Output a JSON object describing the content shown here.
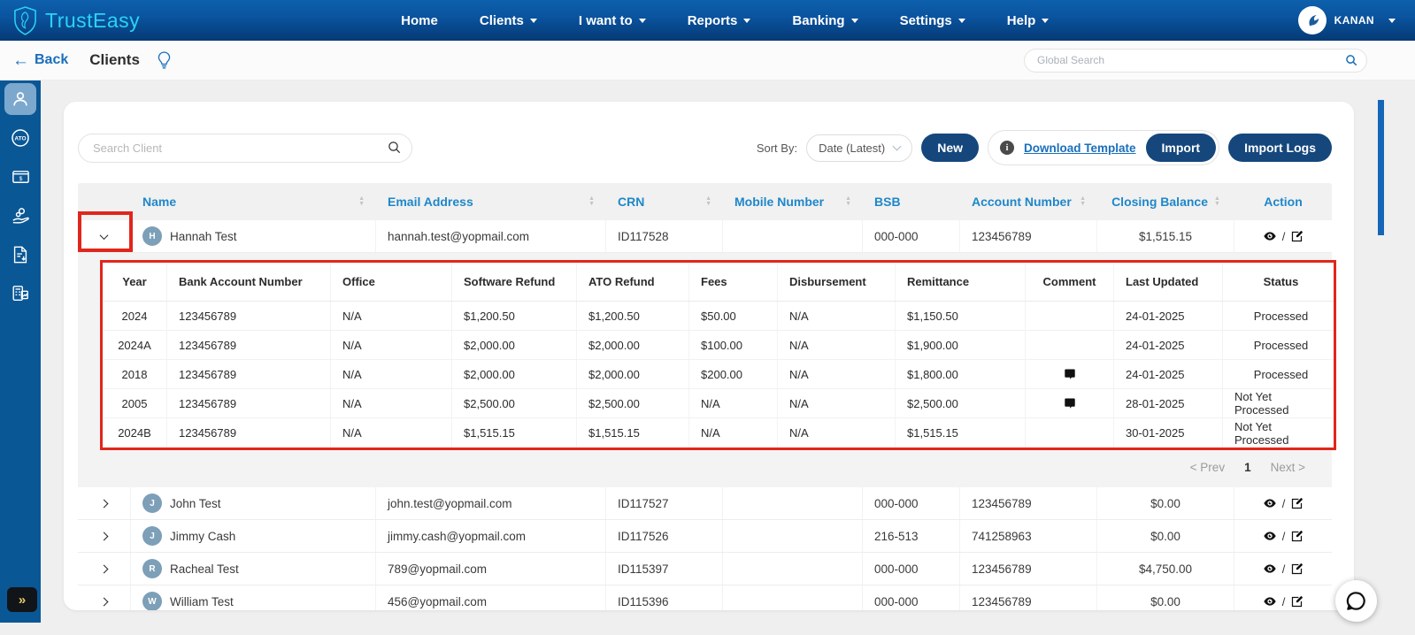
{
  "navbar": {
    "brand": "TrustEasy",
    "items": [
      {
        "id": "home",
        "label": "Home",
        "caret": false
      },
      {
        "id": "clients",
        "label": "Clients",
        "caret": true
      },
      {
        "id": "i-want-to",
        "label": "I want to",
        "caret": true
      },
      {
        "id": "reports",
        "label": "Reports",
        "caret": true
      },
      {
        "id": "banking",
        "label": "Banking",
        "caret": true
      },
      {
        "id": "settings",
        "label": "Settings",
        "caret": true
      },
      {
        "id": "help",
        "label": "Help",
        "caret": true
      }
    ],
    "user_name": "KANAN"
  },
  "subheader": {
    "back_label": "Back",
    "title": "Clients",
    "global_search_placeholder": "Global Search",
    "icons": [
      "back-arrow-icon",
      "lightbulb-icon",
      "search-icon"
    ]
  },
  "sidebar": {
    "items": [
      {
        "id": "clients",
        "icon": "person-icon",
        "active": true
      },
      {
        "id": "ato",
        "icon": "ato-icon",
        "active": false
      },
      {
        "id": "banking",
        "icon": "monitor-money-icon",
        "active": false
      },
      {
        "id": "disbursement",
        "icon": "hand-coins-icon",
        "active": false
      },
      {
        "id": "documents",
        "icon": "document-download-icon",
        "active": false
      },
      {
        "id": "reports",
        "icon": "calculator-report-icon",
        "active": false
      }
    ],
    "expand_label": "»"
  },
  "toolbar": {
    "search_placeholder": "Search Client",
    "sort_by_label": "Sort By:",
    "sort_value": "Date (Latest)",
    "new_label": "New",
    "info_icon": "info-icon",
    "download_template_label": "Download Template",
    "import_label": "Import",
    "import_logs_label": "Import Logs"
  },
  "clients_table": {
    "columns": [
      {
        "label": "",
        "sortable": false
      },
      {
        "label": "Name",
        "sortable": true
      },
      {
        "label": "Email Address",
        "sortable": true
      },
      {
        "label": "CRN",
        "sortable": true
      },
      {
        "label": "Mobile Number",
        "sortable": true
      },
      {
        "label": "BSB",
        "sortable": false
      },
      {
        "label": "Account Number",
        "sortable": true
      },
      {
        "label": "Closing Balance",
        "sortable": true
      },
      {
        "label": "Action",
        "sortable": false
      }
    ],
    "rows": [
      {
        "initial": "H",
        "name": "Hannah Test",
        "email": "hannah.test@yopmail.com",
        "crn": "ID117528",
        "mobile": "",
        "bsb": "000-000",
        "account_number": "123456789",
        "closing_balance": "$1,515.15",
        "expanded": true
      },
      {
        "initial": "J",
        "name": "John Test",
        "email": "john.test@yopmail.com",
        "crn": "ID117527",
        "mobile": "",
        "bsb": "000-000",
        "account_number": "123456789",
        "closing_balance": "$0.00",
        "expanded": false
      },
      {
        "initial": "J",
        "name": "Jimmy Cash",
        "email": "jimmy.cash@yopmail.com",
        "crn": "ID117526",
        "mobile": "",
        "bsb": "216-513",
        "account_number": "741258963",
        "closing_balance": "$0.00",
        "expanded": false
      },
      {
        "initial": "R",
        "name": "Racheal Test",
        "email": "789@yopmail.com",
        "crn": "ID115397",
        "mobile": "",
        "bsb": "000-000",
        "account_number": "123456789",
        "closing_balance": "$4,750.00",
        "expanded": false
      },
      {
        "initial": "W",
        "name": "William Test",
        "email": "456@yopmail.com",
        "crn": "ID115396",
        "mobile": "",
        "bsb": "000-000",
        "account_number": "123456789",
        "closing_balance": "$0.00",
        "expanded": false
      }
    ],
    "action_icons": {
      "view": "eye-icon",
      "separator": "/",
      "edit": "edit-icon"
    }
  },
  "detail_table": {
    "columns": [
      "Year",
      "Bank Account Number",
      "Office",
      "Software Refund",
      "ATO Refund",
      "Fees",
      "Disbursement",
      "Remittance",
      "Comment",
      "Last Updated",
      "Status"
    ],
    "rows": [
      {
        "year": "2024",
        "bank_account_number": "123456789",
        "office": "N/A",
        "software_refund": "$1,200.50",
        "ato_refund": "$1,200.50",
        "fees": "$50.00",
        "disbursement": "N/A",
        "remittance": "$1,150.50",
        "has_comment": false,
        "last_updated": "24-01-2025",
        "status": "Processed"
      },
      {
        "year": "2024A",
        "bank_account_number": "123456789",
        "office": "N/A",
        "software_refund": "$2,000.00",
        "ato_refund": "$2,000.00",
        "fees": "$100.00",
        "disbursement": "N/A",
        "remittance": "$1,900.00",
        "has_comment": false,
        "last_updated": "24-01-2025",
        "status": "Processed"
      },
      {
        "year": "2018",
        "bank_account_number": "123456789",
        "office": "N/A",
        "software_refund": "$2,000.00",
        "ato_refund": "$2,000.00",
        "fees": "$200.00",
        "disbursement": "N/A",
        "remittance": "$1,800.00",
        "has_comment": true,
        "last_updated": "24-01-2025",
        "status": "Processed"
      },
      {
        "year": "2005",
        "bank_account_number": "123456789",
        "office": "N/A",
        "software_refund": "$2,500.00",
        "ato_refund": "$2,500.00",
        "fees": "N/A",
        "disbursement": "N/A",
        "remittance": "$2,500.00",
        "has_comment": true,
        "last_updated": "28-01-2025",
        "status": "Not Yet Processed"
      },
      {
        "year": "2024B",
        "bank_account_number": "123456789",
        "office": "N/A",
        "software_refund": "$1,515.15",
        "ato_refund": "$1,515.15",
        "fees": "N/A",
        "disbursement": "N/A",
        "remittance": "$1,515.15",
        "has_comment": false,
        "last_updated": "30-01-2025",
        "status": "Not Yet Processed"
      }
    ],
    "comment_icon": "comment-icon",
    "pagination": {
      "prev_label": "< Prev",
      "page": "1",
      "next_label": "Next >"
    }
  },
  "chat_fab": {
    "icon": "chat-bubble-icon"
  },
  "colors": {
    "navbar_top": "#0d60ac",
    "navbar_bottom": "#053a74",
    "brand_cyan": "#2bd3f4",
    "accent_blue": "#1e87c9",
    "navy_button": "#15477d",
    "link_blue": "#1a6fba",
    "sidebar_blue": "#0a5796",
    "annotation_red": "#e0261c",
    "scrollbar_blue": "#1566b7"
  }
}
